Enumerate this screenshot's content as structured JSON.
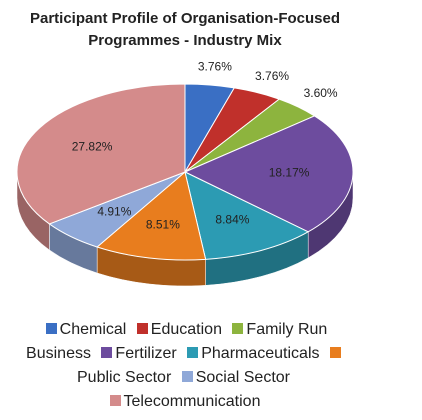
{
  "chart_data": {
    "type": "pie",
    "title": "Participant Profile of Organisation-Focused Programmes - Industry Mix",
    "categories": [
      "Chemical",
      "Education",
      "Family Run Business",
      "Fertilizer",
      "Pharmaceuticals",
      "Public Sector",
      "Social Sector",
      "Telecommunication"
    ],
    "values": [
      3.76,
      3.76,
      3.6,
      18.17,
      8.84,
      8.51,
      4.91,
      27.82
    ],
    "value_labels": [
      "3.76%",
      "3.76%",
      "3.60%",
      "18.17%",
      "8.84%",
      "8.51%",
      "4.91%",
      "27.82%"
    ],
    "colors": [
      "#3a6fc4",
      "#c0302b",
      "#8db43e",
      "#6d4c9e",
      "#2c9bb3",
      "#e87d1e",
      "#8fa8d8",
      "#d48b8b"
    ],
    "legend": "bottom"
  }
}
